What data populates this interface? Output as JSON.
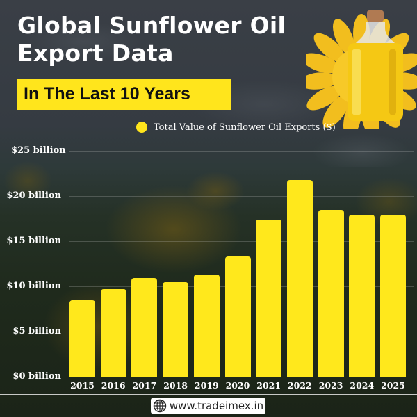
{
  "header": {
    "title_line1": "Global Sunflower Oil",
    "title_line2": "Export Data",
    "subtitle": "In The Last 10 Years"
  },
  "legend": {
    "label": "Total Value of Sunflower Oil Exports ($)",
    "color": "#ffe51c"
  },
  "footer": {
    "icon": "globe-icon",
    "website": "www.tradeimex.in"
  },
  "chart_data": {
    "type": "bar",
    "title": "Global Sunflower Oil Export Data — In The Last 10 Years",
    "xlabel": "",
    "ylabel": "Total Value of Sunflower Oil Exports ($)",
    "categories": [
      "2015",
      "2016",
      "2017",
      "2018",
      "2019",
      "2020",
      "2021",
      "2022",
      "2023",
      "2024",
      "2025"
    ],
    "series": [
      {
        "name": "Total Value of Sunflower Oil Exports ($)",
        "unit": "billion USD",
        "values": [
          8.5,
          9.7,
          10.9,
          10.5,
          11.3,
          13.3,
          17.4,
          21.8,
          18.5,
          17.9,
          17.9
        ],
        "color": "#ffe81c"
      }
    ],
    "yticks": [
      "$0 billion",
      "$5 billion",
      "$10 billion",
      "$15 billion",
      "$20 billion",
      "$25 billion"
    ],
    "ylim": [
      0,
      25
    ],
    "grid": true,
    "legend_position": "top"
  }
}
